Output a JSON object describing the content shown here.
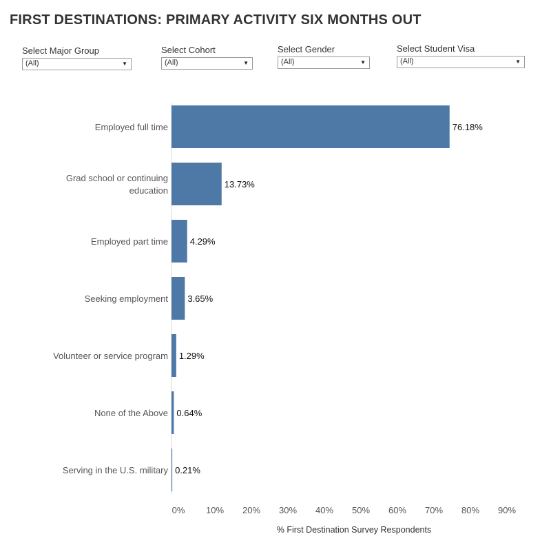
{
  "header": {
    "title": "FIRST DESTINATIONS: PRIMARY ACTIVITY SIX MONTHS OUT"
  },
  "filters": [
    {
      "label": "Select Major Group",
      "value": "(All)"
    },
    {
      "label": "Select Cohort",
      "value": "(All)"
    },
    {
      "label": "Select Gender",
      "value": "(All)"
    },
    {
      "label": "Select Student Visa",
      "value": "(All)"
    }
  ],
  "colors": {
    "bar": "#4e79a7",
    "text": "#333333",
    "grid": "#e6e6e6"
  },
  "chart_data": {
    "type": "bar",
    "orientation": "horizontal",
    "categories": [
      [
        "Employed full time"
      ],
      [
        "Grad school or continuing",
        "education"
      ],
      [
        "Employed part time"
      ],
      [
        "Seeking employment"
      ],
      [
        "Volunteer or service program"
      ],
      [
        "None of the Above"
      ],
      [
        "Serving in the U.S. military"
      ]
    ],
    "values": [
      76.18,
      13.73,
      4.29,
      3.65,
      1.29,
      0.64,
      0.21
    ],
    "value_labels": [
      "76.18%",
      "13.73%",
      "4.29%",
      "3.65%",
      "1.29%",
      "0.64%",
      "0.21%"
    ],
    "xlabel": "% First Destination Survey Respondents",
    "xticks": [
      "0%",
      "10%",
      "20%",
      "30%",
      "40%",
      "50%",
      "60%",
      "70%",
      "80%",
      "90%"
    ],
    "xlim": [
      0,
      90
    ],
    "grid": false
  }
}
